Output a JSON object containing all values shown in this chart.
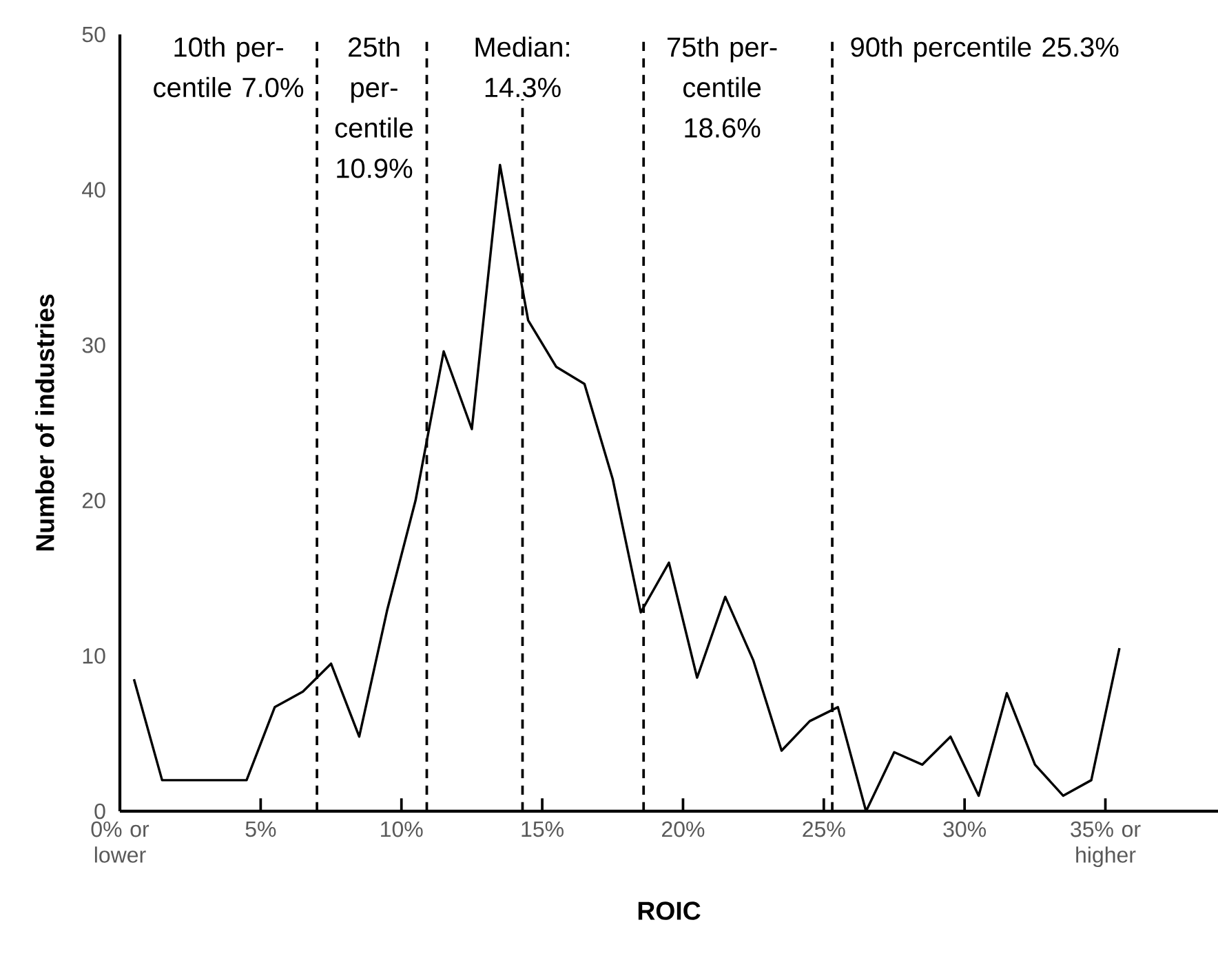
{
  "chart_data": {
    "type": "line",
    "xlabel": "ROIC",
    "ylabel": "Number of industries",
    "x": [
      0.5,
      1.5,
      2.5,
      3.5,
      4.5,
      5.5,
      6.5,
      7.5,
      8.5,
      9.5,
      10.5,
      11.5,
      12.5,
      13.5,
      14.5,
      15.5,
      16.5,
      17.5,
      18.5,
      19.5,
      20.5,
      21.5,
      22.5,
      23.5,
      24.5,
      25.5,
      26.5,
      27.5,
      28.5,
      29.5,
      30.5,
      31.5,
      32.5,
      33.5,
      34.5,
      35.5
    ],
    "values": [
      8.5,
      2,
      2,
      2,
      2,
      6.7,
      7.7,
      9.5,
      4.8,
      13,
      20,
      29.6,
      24.6,
      41.6,
      31.6,
      28.6,
      27.5,
      21.4,
      12.8,
      16,
      8.6,
      13.8,
      9.7,
      3.9,
      5.8,
      6.7,
      0,
      3.8,
      3,
      4.8,
      1,
      7.6,
      3,
      1,
      2,
      10.5
    ],
    "color": "#000000",
    "marker": "none",
    "line_style": "solid",
    "xlim": [
      0,
      39
    ],
    "ylim": [
      0,
      50
    ],
    "xticks": [
      {
        "value": 0,
        "label": "0% or lower"
      },
      {
        "value": 5,
        "label": "5%"
      },
      {
        "value": 10,
        "label": "10%"
      },
      {
        "value": 15,
        "label": "15%"
      },
      {
        "value": 20,
        "label": "20%"
      },
      {
        "value": 25,
        "label": "25%"
      },
      {
        "value": 30,
        "label": "30%"
      },
      {
        "value": 35,
        "label": "35% or higher"
      }
    ],
    "yticks": [
      0,
      10,
      20,
      30,
      40,
      50
    ],
    "ref_lines": [
      {
        "axis": "x",
        "value": 7.0,
        "label": "10th per-centile 7.0%",
        "line_style": "dashed"
      },
      {
        "axis": "x",
        "value": 10.9,
        "label": "25th per-centile 10.9%",
        "line_style": "dashed"
      },
      {
        "axis": "x",
        "value": 14.3,
        "label": "Median: 14.3%",
        "line_style": "dashed"
      },
      {
        "axis": "x",
        "value": 18.6,
        "label": "75th per-centile 18.6%",
        "line_style": "dashed"
      },
      {
        "axis": "x",
        "value": 25.3,
        "label": "90th percentile 25.3%",
        "line_style": "dashed"
      }
    ]
  }
}
